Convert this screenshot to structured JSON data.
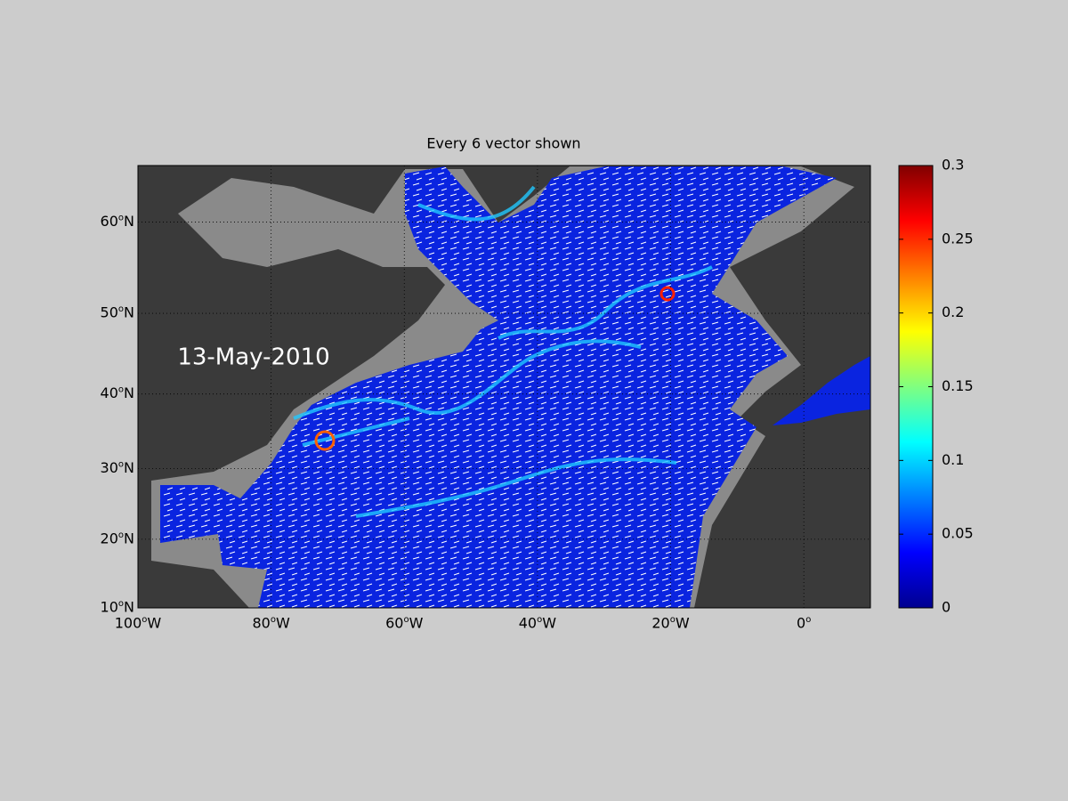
{
  "map": {
    "title": "Every 6 vector shown",
    "date_label": "13-May-2010",
    "xlim": [
      -100,
      10
    ],
    "ylim": [
      10,
      65.4
    ],
    "xticks": [
      {
        "value": -100,
        "label": "100°W"
      },
      {
        "value": -80,
        "label": "80°W"
      },
      {
        "value": -60,
        "label": "60°W"
      },
      {
        "value": -40,
        "label": "40°W"
      },
      {
        "value": -20,
        "label": "20°W"
      },
      {
        "value": 0,
        "label": "0°"
      }
    ],
    "yticks": [
      {
        "value": 10,
        "label": "10°N"
      },
      {
        "value": 20,
        "label": "20°N"
      },
      {
        "value": 30,
        "label": "30°N"
      },
      {
        "value": 40,
        "label": "40°N"
      },
      {
        "value": 50,
        "label": "50°N"
      },
      {
        "value": 60,
        "label": "60°N"
      }
    ],
    "grid": true,
    "colorbar": {
      "lim": [
        0,
        0.3
      ],
      "ticks": [
        0,
        0.05,
        0.1,
        0.15,
        0.2,
        0.25,
        0.3
      ]
    }
  }
}
